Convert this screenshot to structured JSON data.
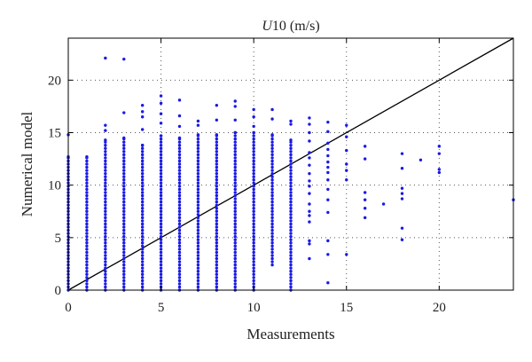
{
  "chart_data": {
    "type": "scatter",
    "title": {
      "italic_part": "U",
      "rest": "10 (m/s)"
    },
    "xlabel": "Measurements",
    "ylabel": "Numerical model",
    "xlim": [
      0,
      24
    ],
    "ylim": [
      0,
      24
    ],
    "x_ticks": [
      0,
      5,
      10,
      15,
      20
    ],
    "y_ticks": [
      0,
      5,
      10,
      15,
      20
    ],
    "grid": true,
    "legend": "none",
    "colors": {
      "points": "#1a1ae6",
      "reference_line": "#000000"
    },
    "reference_line": {
      "x": [
        0,
        24
      ],
      "y": [
        0,
        24
      ]
    },
    "series": [
      {
        "columns": [
          {
            "x": 0,
            "y_min": 0,
            "y_max": 12.7,
            "extra_y": [
              14.8
            ]
          },
          {
            "x": 1,
            "y_min": 0,
            "y_max": 12.7,
            "extra_y": []
          },
          {
            "x": 2,
            "y_min": 0,
            "y_max": 14.3,
            "extra_y": [
              15.2,
              15.7,
              22.1
            ]
          },
          {
            "x": 3,
            "y_min": 0,
            "y_max": 14.5,
            "extra_y": [
              16.9,
              22.0
            ]
          },
          {
            "x": 4,
            "y_min": 0,
            "y_max": 13.8,
            "extra_y": [
              15.3,
              16.5,
              17.0,
              17.6
            ]
          },
          {
            "x": 5,
            "y_min": 0,
            "y_max": 14.7,
            "extra_y": [
              15.9,
              16.8,
              17.8,
              18.5
            ]
          },
          {
            "x": 6,
            "y_min": 0,
            "y_max": 14.5,
            "extra_y": [
              15.6,
              16.6,
              18.1
            ]
          },
          {
            "x": 7,
            "y_min": 0,
            "y_max": 14.8,
            "extra_y": [
              15.7,
              16.1
            ]
          },
          {
            "x": 8,
            "y_min": 0,
            "y_max": 14.8,
            "extra_y": [
              16.2,
              17.6
            ]
          },
          {
            "x": 9,
            "y_min": 0,
            "y_max": 15.0,
            "extra_y": [
              16.2,
              17.5,
              18.0
            ]
          },
          {
            "x": 10,
            "y_min": 0,
            "y_max": 15.0,
            "extra_y": [
              15.6,
              16.5,
              17.2
            ]
          },
          {
            "x": 11,
            "y_min": 2.4,
            "y_max": 14.8,
            "extra_y": [
              16.3,
              17.2
            ]
          },
          {
            "x": 12,
            "y_min": 0,
            "y_max": 14.3,
            "extra_y": [
              15.8,
              16.1
            ]
          }
        ],
        "points": [
          [
            13,
            3.0
          ],
          [
            13,
            4.4
          ],
          [
            13,
            4.7
          ],
          [
            13,
            6.5
          ],
          [
            13,
            7.1
          ],
          [
            13,
            7.5
          ],
          [
            13,
            8.2
          ],
          [
            13,
            9.2
          ],
          [
            13,
            9.9
          ],
          [
            13,
            10.4
          ],
          [
            13,
            11.1
          ],
          [
            13,
            11.9
          ],
          [
            13,
            12.6
          ],
          [
            13,
            13.1
          ],
          [
            13,
            14.2
          ],
          [
            13,
            15.0
          ],
          [
            13,
            15.8
          ],
          [
            13,
            16.4
          ],
          [
            14,
            0.7
          ],
          [
            14,
            3.4
          ],
          [
            14,
            4.7
          ],
          [
            14,
            7.4
          ],
          [
            14,
            8.6
          ],
          [
            14,
            9.6
          ],
          [
            14,
            10.5
          ],
          [
            14,
            11.2
          ],
          [
            14,
            11.7
          ],
          [
            14,
            12.2
          ],
          [
            14,
            12.8
          ],
          [
            14,
            13.4
          ],
          [
            14,
            14.0
          ],
          [
            14,
            15.1
          ],
          [
            14,
            16.0
          ],
          [
            15,
            3.4
          ],
          [
            15,
            10.5
          ],
          [
            15,
            11.4
          ],
          [
            15,
            12.0
          ],
          [
            15,
            13.3
          ],
          [
            15,
            14.6
          ],
          [
            15,
            15.7
          ],
          [
            16,
            6.9
          ],
          [
            16,
            7.8
          ],
          [
            16,
            8.6
          ],
          [
            16,
            9.3
          ],
          [
            16,
            12.5
          ],
          [
            16,
            13.7
          ],
          [
            17,
            8.2
          ],
          [
            18,
            4.8
          ],
          [
            18,
            5.9
          ],
          [
            18,
            8.7
          ],
          [
            18,
            9.2
          ],
          [
            18,
            9.7
          ],
          [
            18,
            11.6
          ],
          [
            18,
            13.0
          ],
          [
            19,
            12.4
          ],
          [
            20,
            11.2
          ],
          [
            20,
            11.5
          ],
          [
            20,
            13.0
          ],
          [
            20,
            13.7
          ],
          [
            24,
            8.6
          ]
        ]
      }
    ]
  }
}
